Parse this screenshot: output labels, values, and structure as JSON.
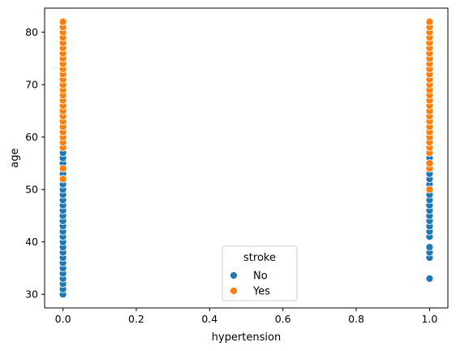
{
  "chart_data": {
    "type": "scatter",
    "xlabel": "hypertension",
    "ylabel": "age",
    "xlim": [
      -0.05,
      1.05
    ],
    "ylim": [
      27.4,
      84.6
    ],
    "xticks": [
      0.0,
      0.2,
      0.4,
      0.6,
      0.8,
      1.0
    ],
    "xtick_labels": [
      "0.0",
      "0.2",
      "0.4",
      "0.6",
      "0.8",
      "1.0"
    ],
    "yticks": [
      30,
      40,
      50,
      60,
      70,
      80
    ],
    "ytick_labels": [
      "30",
      "40",
      "50",
      "60",
      "70",
      "80"
    ],
    "grid": false,
    "legend": {
      "title": "stroke",
      "placement": "lower-center",
      "entries": [
        "No",
        "Yes"
      ]
    },
    "series": [
      {
        "name": "No",
        "color": "#1f77b4",
        "points": [
          [
            0,
            30
          ],
          [
            0,
            31
          ],
          [
            0,
            32
          ],
          [
            0,
            33
          ],
          [
            0,
            34
          ],
          [
            0,
            35
          ],
          [
            0,
            36
          ],
          [
            0,
            37
          ],
          [
            0,
            38
          ],
          [
            0,
            39
          ],
          [
            0,
            40
          ],
          [
            0,
            41
          ],
          [
            0,
            42
          ],
          [
            0,
            43
          ],
          [
            0,
            44
          ],
          [
            0,
            45
          ],
          [
            0,
            46
          ],
          [
            0,
            47
          ],
          [
            0,
            48
          ],
          [
            0,
            49
          ],
          [
            0,
            50
          ],
          [
            0,
            51
          ],
          [
            0,
            52
          ],
          [
            0,
            53
          ],
          [
            0,
            55
          ],
          [
            0,
            56
          ],
          [
            0,
            57
          ],
          [
            1,
            33
          ],
          [
            1,
            37
          ],
          [
            1,
            38
          ],
          [
            1,
            39
          ],
          [
            1,
            41
          ],
          [
            1,
            42
          ],
          [
            1,
            43
          ],
          [
            1,
            44
          ],
          [
            1,
            45
          ],
          [
            1,
            46
          ],
          [
            1,
            47
          ],
          [
            1,
            48
          ],
          [
            1,
            49
          ],
          [
            1,
            51
          ],
          [
            1,
            52
          ],
          [
            1,
            53
          ],
          [
            1,
            55
          ],
          [
            1,
            56
          ]
        ]
      },
      {
        "name": "Yes",
        "color": "#ff7f0e",
        "points": [
          [
            0,
            52
          ],
          [
            0,
            54
          ],
          [
            0,
            58
          ],
          [
            0,
            59
          ],
          [
            0,
            60
          ],
          [
            0,
            61
          ],
          [
            0,
            62
          ],
          [
            0,
            63
          ],
          [
            0,
            64
          ],
          [
            0,
            65
          ],
          [
            0,
            66
          ],
          [
            0,
            67
          ],
          [
            0,
            68
          ],
          [
            0,
            69
          ],
          [
            0,
            70
          ],
          [
            0,
            71
          ],
          [
            0,
            72
          ],
          [
            0,
            73
          ],
          [
            0,
            74
          ],
          [
            0,
            75
          ],
          [
            0,
            76
          ],
          [
            0,
            77
          ],
          [
            0,
            78
          ],
          [
            0,
            79
          ],
          [
            0,
            80
          ],
          [
            0,
            81
          ],
          [
            0,
            82
          ],
          [
            1,
            50
          ],
          [
            1,
            54
          ],
          [
            1,
            55
          ],
          [
            1,
            57
          ],
          [
            1,
            58
          ],
          [
            1,
            59
          ],
          [
            1,
            60
          ],
          [
            1,
            61
          ],
          [
            1,
            62
          ],
          [
            1,
            63
          ],
          [
            1,
            64
          ],
          [
            1,
            65
          ],
          [
            1,
            66
          ],
          [
            1,
            67
          ],
          [
            1,
            68
          ],
          [
            1,
            69
          ],
          [
            1,
            70
          ],
          [
            1,
            71
          ],
          [
            1,
            72
          ],
          [
            1,
            73
          ],
          [
            1,
            74
          ],
          [
            1,
            75
          ],
          [
            1,
            76
          ],
          [
            1,
            77
          ],
          [
            1,
            78
          ],
          [
            1,
            79
          ],
          [
            1,
            80
          ],
          [
            1,
            81
          ],
          [
            1,
            82
          ]
        ]
      }
    ]
  }
}
